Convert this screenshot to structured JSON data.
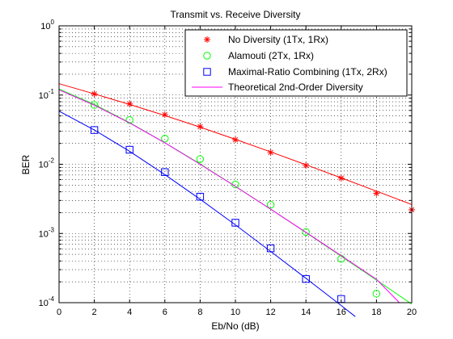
{
  "chart_data": {
    "type": "line",
    "title": "Transmit vs. Receive Diversity",
    "xlabel": "Eb/No (dB)",
    "ylabel": "BER",
    "xlim": [
      0,
      20
    ],
    "ylim": [
      0.0001,
      1
    ],
    "yscale": "log",
    "grid": true,
    "legend_position": "top-right",
    "x_ticks": [
      "0",
      "2",
      "4",
      "6",
      "8",
      "10",
      "12",
      "14",
      "16",
      "18",
      "20"
    ],
    "y_ticks": [
      {
        "base": "10",
        "exp": "0",
        "value": 1
      },
      {
        "base": "10",
        "exp": "-1",
        "value": 0.1
      },
      {
        "base": "10",
        "exp": "-2",
        "value": 0.01
      },
      {
        "base": "10",
        "exp": "-3",
        "value": 0.001
      },
      {
        "base": "10",
        "exp": "-4",
        "value": 0.0001
      }
    ],
    "series": [
      {
        "name": "No Diversity (1Tx, 1Rx)",
        "color": "#ff0000",
        "marker": "asterisk",
        "curve": {
          "x": [
            0,
            2,
            4,
            6,
            8,
            10,
            12,
            14,
            16,
            18,
            20
          ],
          "y": [
            0.146,
            0.104,
            0.0732,
            0.0506,
            0.0344,
            0.0229,
            0.0151,
            0.00984,
            0.00636,
            0.00409,
            0.00262
          ]
        },
        "points": {
          "x": [
            2,
            4,
            6,
            8,
            10,
            12,
            14,
            16,
            18,
            20
          ],
          "y": [
            0.104,
            0.0745,
            0.052,
            0.0349,
            0.0226,
            0.0148,
            0.0096,
            0.0063,
            0.0038,
            0.0022
          ]
        }
      },
      {
        "name": "Alamouti (2Tx, 1Rx)",
        "color": "#00ff00",
        "marker": "circle",
        "curve": {
          "x": [
            0,
            2,
            4,
            6,
            8,
            10,
            12,
            14,
            16,
            18,
            20
          ],
          "y": [
            0.122,
            0.0731,
            0.04,
            0.0205,
            0.0101,
            0.0048,
            0.00225,
            0.00103,
            0.00047,
            0.000212,
            9.55e-05
          ]
        },
        "points": {
          "x": [
            2,
            4,
            6,
            8,
            10,
            12,
            14,
            16,
            18
          ],
          "y": [
            0.0718,
            0.0435,
            0.0235,
            0.0119,
            0.0051,
            0.0026,
            0.00105,
            0.00043,
            0.000135
          ]
        }
      },
      {
        "name": "Maximal-Ratio Combining (1Tx, 2Rx)",
        "color": "#0000ff",
        "marker": "square",
        "curve": {
          "x": [
            0,
            2,
            4,
            6,
            8,
            10,
            12,
            14,
            16,
            16.8
          ],
          "y": [
            0.0585,
            0.0312,
            0.0154,
            0.0071,
            0.00313,
            0.00133,
            0.00055,
            0.000225,
            9.1e-05,
            6.3e-05
          ]
        },
        "points": {
          "x": [
            2,
            4,
            6,
            8,
            10,
            12,
            14,
            16
          ],
          "y": [
            0.0312,
            0.0162,
            0.0077,
            0.0034,
            0.00143,
            0.00061,
            0.00022,
            0.000113
          ]
        }
      },
      {
        "name": "Theoretical 2nd-Order Diversity",
        "color": "#ff00ff",
        "marker": "none",
        "curve": {
          "x": [
            0,
            2,
            4,
            6,
            8,
            10,
            12,
            14,
            16,
            18,
            19.3
          ],
          "y": [
            0.119,
            0.0714,
            0.0395,
            0.0204,
            0.01,
            0.00478,
            0.00224,
            0.00104,
            0.000477,
            0.000218,
            0.0001
          ]
        },
        "points": null
      }
    ]
  }
}
